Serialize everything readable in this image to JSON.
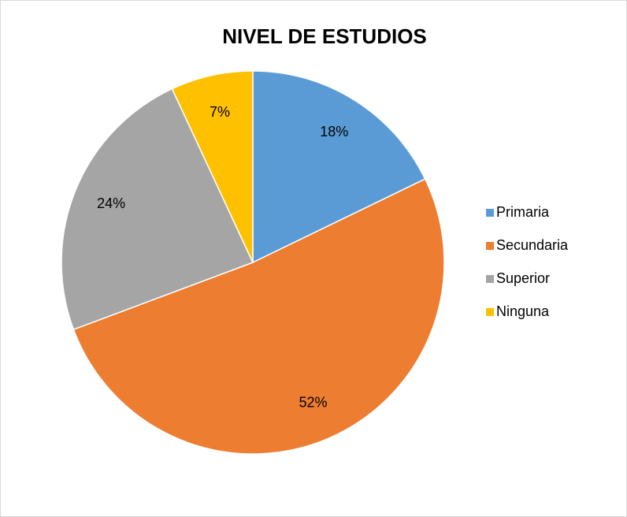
{
  "chart_data": {
    "type": "pie",
    "title": "NIVEL DE ESTUDIOS",
    "categories": [
      "Primaria",
      "Secundaria",
      "Superior",
      "Ninguna"
    ],
    "values": [
      18,
      52,
      24,
      7
    ],
    "value_labels": [
      "18%",
      "52%",
      "24%",
      "7%"
    ],
    "colors": [
      "#5b9bd5",
      "#ed7d31",
      "#a5a5a5",
      "#ffc000"
    ],
    "legend": "right"
  }
}
